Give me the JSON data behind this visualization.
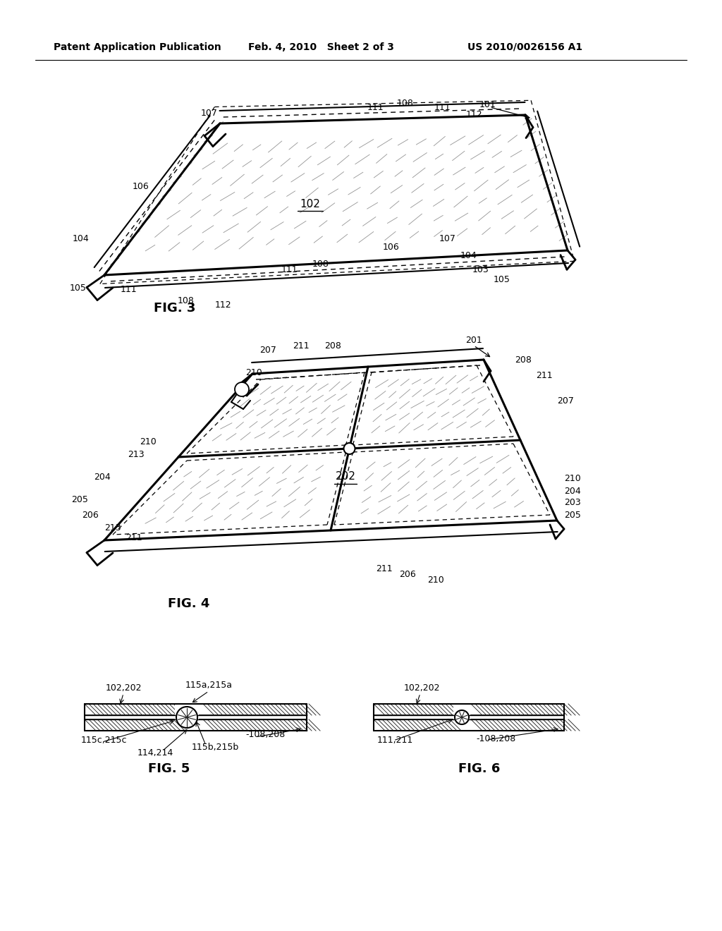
{
  "background_color": "#ffffff",
  "header_left": "Patent Application Publication",
  "header_center": "Feb. 4, 2010   Sheet 2 of 3",
  "header_right": "US 2010/0026156 A1",
  "fig3_label": "FIG. 3",
  "fig4_label": "FIG. 4",
  "fig5_label": "FIG. 5",
  "fig6_label": "FIG. 6",
  "line_color": "#000000",
  "text_color": "#000000"
}
